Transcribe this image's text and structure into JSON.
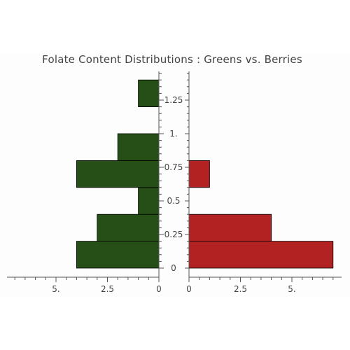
{
  "chart_data": {
    "type": "bar",
    "orientation": "horizontal",
    "layout": "back-to-back histogram",
    "title": "Folate  Content  Distributions : Greens  vs.  Berries",
    "bins": [
      {
        "lower": 0.0,
        "upper": 0.2
      },
      {
        "lower": 0.2,
        "upper": 0.4
      },
      {
        "lower": 0.4,
        "upper": 0.6
      },
      {
        "lower": 0.6,
        "upper": 0.8
      },
      {
        "lower": 0.8,
        "upper": 1.0
      },
      {
        "lower": 1.2,
        "upper": 1.4
      }
    ],
    "series": [
      {
        "side": "left",
        "color": "#264f17",
        "values": [
          4,
          3,
          1,
          4,
          2,
          1
        ]
      },
      {
        "side": "right",
        "color": "#b22222",
        "values": [
          7,
          4,
          0,
          1,
          0,
          0
        ]
      }
    ],
    "y_ticks": [
      "0",
      "0.25",
      "0.5",
      "0.75",
      "1.",
      "1.25"
    ],
    "y_tick_values": [
      0,
      0.25,
      0.5,
      0.75,
      1.0,
      1.25
    ],
    "ylim": [
      -0.03,
      1.48
    ],
    "left_x_ticks": [
      "5.",
      "2.5",
      "0"
    ],
    "left_x_tick_values": [
      5,
      2.5,
      0
    ],
    "left_xlim": [
      0,
      7.5
    ],
    "right_x_ticks": [
      "0",
      "2.5",
      "5."
    ],
    "right_x_tick_values": [
      0,
      2.5,
      5
    ],
    "right_xlim": [
      0,
      7.4
    ],
    "grid": false,
    "legend": "none"
  }
}
